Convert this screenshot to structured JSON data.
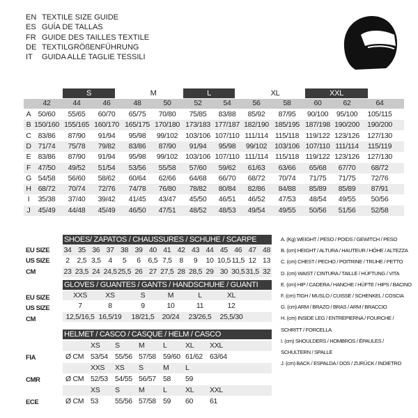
{
  "guide_titles": [
    {
      "code": "EN",
      "text": "TEXTILE SIZE GUIDE"
    },
    {
      "code": "ES",
      "text": "GUÍA DE TALLAS"
    },
    {
      "code": "FR",
      "text": "GUIDE DES TAILLES TEXTILE"
    },
    {
      "code": "DE",
      "text": "TEXTILGRÖßENFÜHRUNG"
    },
    {
      "code": "IT",
      "text": "GUIDA ALLE TAGLIE TESSILI"
    }
  ],
  "icon": "helmet-icon",
  "colors": {
    "dark_header": "#3b3b3b",
    "gray_header": "#c9c9c9",
    "stripe": "#ececec"
  },
  "textile": {
    "letter_sizes": [
      "S",
      "M",
      "L",
      "XL",
      "XXL"
    ],
    "sizes": [
      "42",
      "44",
      "46",
      "48",
      "50",
      "52",
      "54",
      "56",
      "58",
      "60",
      "62",
      "64"
    ],
    "rows": [
      {
        "label": "A",
        "values": [
          "50/60",
          "55/65",
          "60/70",
          "65/75",
          "70/80",
          "75/85",
          "83/88",
          "85/92",
          "87/95",
          "90/100",
          "95/100",
          "105/115"
        ]
      },
      {
        "label": "B",
        "values": [
          "150/160",
          "155/165",
          "160/170",
          "165/175",
          "170/180",
          "173/183",
          "177/187",
          "182/190",
          "185/195",
          "187/198",
          "190/200",
          "190/200"
        ]
      },
      {
        "label": "C",
        "values": [
          "83/86",
          "87/90",
          "91/94",
          "95/98",
          "99/102",
          "103/106",
          "107/110",
          "111/114",
          "115/118",
          "119/122",
          "123/126",
          "127/130"
        ]
      },
      {
        "label": "D",
        "values": [
          "71/74",
          "75/78",
          "79/82",
          "83/86",
          "87/90",
          "91/94",
          "95/98",
          "99/102",
          "103/106",
          "107/110",
          "111/114",
          "115/119"
        ]
      },
      {
        "label": "E",
        "values": [
          "83/86",
          "87/90",
          "91/94",
          "95/98",
          "99/102",
          "103/106",
          "107/110",
          "111/114",
          "115/118",
          "119/122",
          "123/126",
          "127/130"
        ]
      },
      {
        "label": "F",
        "values": [
          "47/50",
          "49/52",
          "51/54",
          "53/56",
          "55/58",
          "57/60",
          "59/62",
          "61/63",
          "63/66",
          "65/68",
          "67/70",
          "68/72"
        ]
      },
      {
        "label": "G",
        "values": [
          "54/58",
          "56/60",
          "58/62",
          "60/64",
          "62/66",
          "64/68",
          "66/70",
          "68/72",
          "70/74",
          "71/75",
          "71/75",
          "72/76"
        ]
      },
      {
        "label": "H",
        "values": [
          "68/72",
          "70/74",
          "72/76",
          "74/78",
          "76/80",
          "78/82",
          "80/84",
          "82/86",
          "84/88",
          "85/89",
          "85/89",
          "87/91"
        ]
      },
      {
        "label": "I",
        "values": [
          "35/38",
          "37/40",
          "39/42",
          "41/45",
          "43/47",
          "45/50",
          "46/51",
          "46/52",
          "47/53",
          "48/54",
          "49/55",
          "50/56"
        ]
      },
      {
        "label": "J",
        "values": [
          "45/49",
          "44/48",
          "45/49",
          "46/50",
          "47/51",
          "48/52",
          "48/53",
          "49/54",
          "49/55",
          "50/56",
          "51/56",
          "52/58"
        ]
      }
    ]
  },
  "shoes": {
    "title": "SHOES/ ZAPATOS / CHAUSSURES / SCHUHE / SCARPE",
    "rows": [
      {
        "label": "EU SIZE",
        "values": [
          "34",
          "35",
          "36",
          "37",
          "38",
          "39",
          "40",
          "41",
          "42",
          "43",
          "44",
          "45",
          "46",
          "47",
          "48"
        ]
      },
      {
        "label": "US SIZE",
        "values": [
          "2",
          "2,5",
          "3,5",
          "4",
          "5",
          "6",
          "6,5",
          "7,5",
          "8",
          "9",
          "10",
          "10,5",
          "11,5",
          "12",
          "13"
        ]
      },
      {
        "label": "CM",
        "values": [
          "23",
          "23,5",
          "24",
          "24,5",
          "25,5",
          "26",
          "27",
          "27,5",
          "28",
          "28,5",
          "29",
          "30",
          "30,5",
          "31,5",
          "32"
        ]
      }
    ]
  },
  "gloves": {
    "title": "GLOVES / GUANTES / GANTS / HANDSCHUHE / GUANTI",
    "rows": [
      {
        "label": "EU SIZE",
        "values": [
          "XXS",
          "XS",
          "S",
          "M",
          "L",
          "XL"
        ]
      },
      {
        "label": "US SIZE",
        "values": [
          "7",
          "8",
          "9",
          "10",
          "11",
          "12"
        ]
      },
      {
        "label": "CM",
        "values": [
          "12,5/16,5",
          "16,5/19",
          "18/21,5",
          "20/24",
          "23/26,5",
          "25,5/30"
        ]
      }
    ]
  },
  "helmet": {
    "title": "HELMET / CASCO / CASQUE / HELM / CASCO",
    "groups": [
      {
        "label": "FIA",
        "unit": "Ø CM",
        "sizes": [
          "XS",
          "S",
          "M",
          "L",
          "XL",
          "XXL"
        ],
        "values": [
          "53/54",
          "55/56",
          "57/58",
          "59/60",
          "61/62",
          "63/64"
        ]
      },
      {
        "label": "CMR",
        "unit": "Ø CM",
        "sizes": [
          "XXS",
          "XS",
          "S",
          "M",
          "L"
        ],
        "values": [
          "52/53",
          "54/55",
          "56/57",
          "58",
          "59"
        ]
      },
      {
        "label": "ECE",
        "unit": "Ø CM",
        "sizes": [
          "XS",
          "S",
          "M",
          "L",
          "XL",
          "XXL"
        ],
        "values": [
          "53",
          "55/56",
          "57/58",
          "59",
          "60",
          "61"
        ]
      }
    ]
  },
  "legend": [
    "A. (Kg) WEIGHT / PESO / POIDS / GEWITCH / PESO",
    "B. (cm) HEIGHT / ALTURA / HAUTEUR / HÖHE / ALTEZZA",
    "C. (cm) CHEST / PECHO / POITRINE / TRUHE / PETTO",
    "D. (cm) WAIST / CINTURA / TAILLE / HÜFTUNG / VITA",
    "E. (cm) HIP / CADERA / HANCHE / HÜFTE / HIPS /  BACINO",
    "F.  (cm) TIGH / MUSLO / CUISSE / SCHENKEL / COSCIA",
    "G. (cm) ARM  / BRAZO / BRAS / ARM / BRACCIO",
    "H. (cm) INSIDE LEG / ENTREPIERNA / FOURCHE /",
    "SCHRITT / FORCELLA",
    "I.  (cm) SHOULDERS / HOMBROS / ÉPAULES /",
    "SCHULTERN / SPALLE",
    "J. (cm) BACK / ESPALDA / DOS / ZURÜCK / INDIETRO"
  ]
}
